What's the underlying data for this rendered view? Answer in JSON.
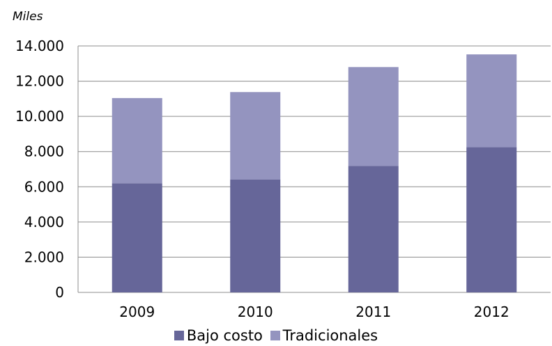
{
  "chart_data": {
    "type": "bar",
    "stacked": true,
    "categories": [
      "2009",
      "2010",
      "2011",
      "2012"
    ],
    "series": [
      {
        "name": "Bajo costo",
        "values": [
          6200,
          6420,
          7180,
          8250
        ],
        "color": "#666699"
      },
      {
        "name": "Tradicionales",
        "values": [
          4840,
          4960,
          5620,
          5270
        ],
        "color": "#9494bf"
      }
    ],
    "ylabel": "Miles",
    "ylim": [
      0,
      14000
    ],
    "yticks": [
      "0",
      "2.000",
      "4.000",
      "6.000",
      "8.000",
      "10.000",
      "12.000",
      "14.000"
    ],
    "grid": true,
    "legend": "bottom"
  }
}
